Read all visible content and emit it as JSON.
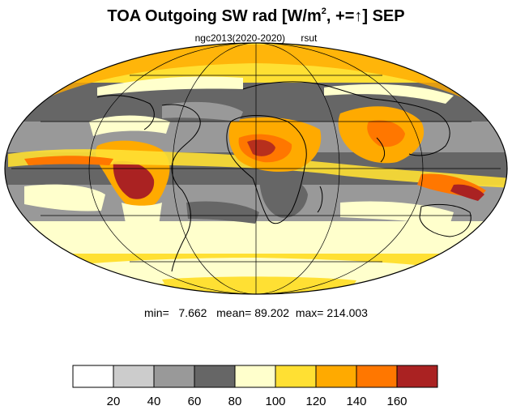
{
  "title": {
    "pre": "TOA Outgoing SW rad [W/m",
    "sup": "2",
    "post": ", +=↑] SEP"
  },
  "subtitle": {
    "run": "ngc2013(2020-2020)",
    "variable": "rsut"
  },
  "stats": {
    "min_label": "min=",
    "min_value": "7.662",
    "mean_label": "mean=",
    "mean_value": "89.202",
    "max_label": "max=",
    "max_value": "214.003"
  },
  "colorbar": {
    "colors": [
      "#ffffff",
      "#cccccc",
      "#999999",
      "#666666",
      "#ffffcc",
      "#ffe033",
      "#ffaa00",
      "#ff7700",
      "#aa2222"
    ],
    "labels": [
      "20",
      "40",
      "60",
      "80",
      "100",
      "120",
      "140",
      "160"
    ]
  },
  "map": {
    "projection": "mollweide",
    "coastline_color": "#000000",
    "graticule_color": "#000000"
  }
}
